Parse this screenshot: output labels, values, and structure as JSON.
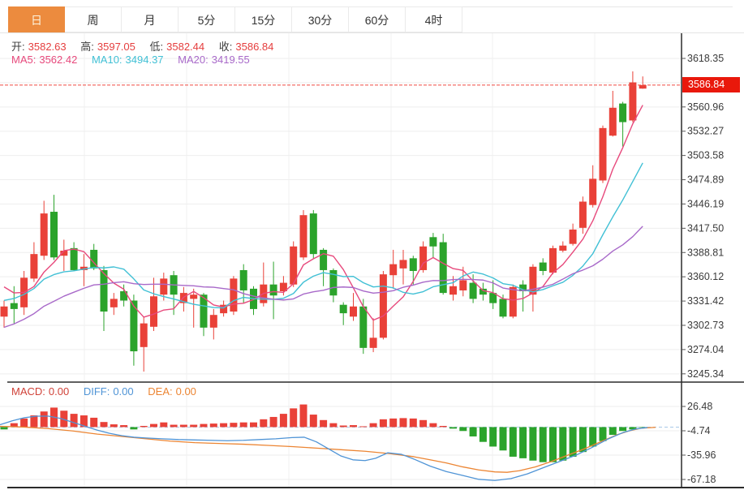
{
  "tabs": [
    {
      "key": "day",
      "label": "日",
      "active": true
    },
    {
      "key": "week",
      "label": "周",
      "active": false
    },
    {
      "key": "month",
      "label": "月",
      "active": false
    },
    {
      "key": "5min",
      "label": "5分",
      "active": false
    },
    {
      "key": "15min",
      "label": "15分",
      "active": false
    },
    {
      "key": "30min",
      "label": "30分",
      "active": false
    },
    {
      "key": "60min",
      "label": "60分",
      "active": false
    },
    {
      "key": "4hour",
      "label": "4时",
      "active": false
    }
  ],
  "ohlc_row": {
    "open_label": "开:",
    "open": "3582.63",
    "high_label": "高:",
    "high": "3597.05",
    "low_label": "低:",
    "low": "3582.44",
    "close_label": "收:",
    "close": "3586.84"
  },
  "ma_row": {
    "ma5_label": "MA5:",
    "ma5": "3562.42",
    "ma10_label": "MA10:",
    "ma10": "3494.37",
    "ma20_label": "MA20:",
    "ma20": "3419.55"
  },
  "macd_row": {
    "macd_label": "MACD:",
    "macd": "0.00",
    "diff_label": "DIFF:",
    "diff": "0.00",
    "dea_label": "DEA:",
    "dea": "0.00"
  },
  "current_price_label": "3586.84",
  "colors": {
    "up": "#e94138",
    "down": "#2ba32b",
    "price_tag_bg": "#e9180b",
    "price_dash": "#ef4a41",
    "ma5": "#e7497c",
    "ma10": "#41c0d5",
    "ma20": "#a869c9",
    "diff": "#4f94d6",
    "dea": "#ec8533",
    "macd_text": "#d04238",
    "grid": "#eeeeee",
    "vgrid": "#f1f1f1",
    "axis": "#2b2b2b",
    "tick_text": "#3b3b3b",
    "zero_dash": "#a8c8e8",
    "tab_active_bg": "#ec8b3e",
    "frame": "#e4e4e4"
  },
  "chart_data": {
    "type": "candlestick",
    "title": "",
    "legend": [
      "MA5",
      "MA10",
      "MA20",
      "MACD",
      "DIFF",
      "DEA"
    ],
    "current_price": 3586.84,
    "price_axis_ticks": [
      3618.35,
      3560.96,
      3532.27,
      3503.58,
      3474.89,
      3446.19,
      3417.5,
      3388.81,
      3360.12,
      3331.42,
      3302.73,
      3274.04,
      3245.34
    ],
    "hidden_gridline_price": 3589.66,
    "price_range": [
      3235.5,
      3648.1
    ],
    "macd_axis_ticks": [
      26.48,
      -4.74,
      -35.96,
      -67.18
    ],
    "macd_range": [
      57.7,
      -77.6
    ],
    "ma_periods": [
      5,
      10,
      20
    ],
    "ma_seed_closes": [
      3240,
      3248,
      3255,
      3260,
      3266,
      3270,
      3274,
      3280,
      3290,
      3301,
      3300,
      3310,
      3318,
      3324,
      3329,
      3358,
      3356,
      3352,
      3350
    ],
    "candles_ohlc": [
      [
        3313,
        3332,
        3300,
        3325
      ],
      [
        3329,
        3349,
        3305,
        3322
      ],
      [
        3324,
        3367,
        3315,
        3359
      ],
      [
        3358,
        3401,
        3354,
        3387
      ],
      [
        3385,
        3450,
        3380,
        3435
      ],
      [
        3437,
        3457,
        3380,
        3383
      ],
      [
        3385,
        3404,
        3367,
        3391
      ],
      [
        3394,
        3401,
        3367,
        3368
      ],
      [
        3368,
        3387,
        3349,
        3372
      ],
      [
        3392,
        3399,
        3368,
        3370
      ],
      [
        3368,
        3373,
        3296,
        3319
      ],
      [
        3324,
        3341,
        3315,
        3334
      ],
      [
        3343,
        3351,
        3325,
        3332
      ],
      [
        3332,
        3339,
        3255,
        3272
      ],
      [
        3277,
        3313,
        3248,
        3305
      ],
      [
        3301,
        3359,
        3296,
        3337
      ],
      [
        3339,
        3365,
        3332,
        3358
      ],
      [
        3362,
        3367,
        3315,
        3339
      ],
      [
        3329,
        3348,
        3319,
        3341
      ],
      [
        3334,
        3346,
        3300,
        3339
      ],
      [
        3339,
        3341,
        3290,
        3300
      ],
      [
        3300,
        3322,
        3286,
        3315
      ],
      [
        3317,
        3332,
        3313,
        3327
      ],
      [
        3319,
        3361,
        3315,
        3358
      ],
      [
        3368,
        3375,
        3329,
        3344
      ],
      [
        3346,
        3349,
        3315,
        3322
      ],
      [
        3329,
        3377,
        3325,
        3351
      ],
      [
        3351,
        3378,
        3310,
        3338
      ],
      [
        3343,
        3361,
        3338,
        3353
      ],
      [
        3351,
        3402,
        3348,
        3396
      ],
      [
        3383,
        3439,
        3380,
        3433
      ],
      [
        3435,
        3439,
        3382,
        3387
      ],
      [
        3392,
        3394,
        3349,
        3368
      ],
      [
        3368,
        3370,
        3330,
        3338
      ],
      [
        3327,
        3330,
        3303,
        3317
      ],
      [
        3313,
        3341,
        3308,
        3325
      ],
      [
        3325,
        3334,
        3269,
        3276
      ],
      [
        3276,
        3311,
        3271,
        3288
      ],
      [
        3288,
        3367,
        3286,
        3363
      ],
      [
        3362,
        3392,
        3346,
        3375
      ],
      [
        3370,
        3392,
        3351,
        3380
      ],
      [
        3382,
        3385,
        3351,
        3367
      ],
      [
        3368,
        3402,
        3365,
        3396
      ],
      [
        3407,
        3412,
        3383,
        3396
      ],
      [
        3401,
        3411,
        3339,
        3341
      ],
      [
        3339,
        3361,
        3332,
        3349
      ],
      [
        3344,
        3372,
        3337,
        3356
      ],
      [
        3353,
        3363,
        3329,
        3334
      ],
      [
        3346,
        3353,
        3332,
        3339
      ],
      [
        3341,
        3356,
        3322,
        3329
      ],
      [
        3334,
        3339,
        3311,
        3313
      ],
      [
        3313,
        3351,
        3311,
        3348
      ],
      [
        3351,
        3356,
        3319,
        3343
      ],
      [
        3339,
        3375,
        3319,
        3372
      ],
      [
        3377,
        3382,
        3362,
        3367
      ],
      [
        3365,
        3397,
        3363,
        3394
      ],
      [
        3391,
        3402,
        3389,
        3397
      ],
      [
        3399,
        3423,
        3397,
        3416
      ],
      [
        3418,
        3455,
        3411,
        3449
      ],
      [
        3445,
        3492,
        3442,
        3476
      ],
      [
        3474,
        3539,
        3471,
        3536
      ],
      [
        3527,
        3580,
        3526,
        3560
      ],
      [
        3565,
        3567,
        3514,
        3543
      ],
      [
        3545,
        3603,
        3543,
        3590
      ],
      [
        3582.63,
        3597.05,
        3582.44,
        3586.84
      ]
    ],
    "macd_histogram": [
      -3,
      5,
      11,
      15,
      20,
      25,
      21,
      17,
      15,
      12,
      6.5,
      3.5,
      2.5,
      -3,
      1.5,
      4,
      6,
      3,
      3,
      3,
      4,
      4.5,
      5,
      5.5,
      6,
      6,
      10,
      13,
      17,
      24,
      29,
      16,
      9,
      5,
      2,
      2.5,
      1,
      5,
      10,
      11,
      11.5,
      11,
      9,
      5,
      1.5,
      -2,
      -5,
      -12,
      -19,
      -25,
      -30,
      -38,
      -40,
      -43,
      -45,
      -45,
      -43,
      -38,
      -32,
      -25,
      -18,
      -10,
      -5,
      -3,
      -0.5
    ],
    "diff_line": [
      [
        0,
        3
      ],
      [
        15,
        8
      ],
      [
        30,
        12
      ],
      [
        45,
        14
      ],
      [
        60,
        14
      ],
      [
        75,
        11
      ],
      [
        90,
        6
      ],
      [
        105,
        1
      ],
      [
        120,
        -4
      ],
      [
        135,
        -8
      ],
      [
        150,
        -11
      ],
      [
        165,
        -13
      ],
      [
        180,
        -14
      ],
      [
        200,
        -15
      ],
      [
        220,
        -16
      ],
      [
        240,
        -16.5
      ],
      [
        260,
        -17
      ],
      [
        280,
        -17.5
      ],
      [
        300,
        -17
      ],
      [
        320,
        -16
      ],
      [
        340,
        -15
      ],
      [
        360,
        -13.5
      ],
      [
        375,
        -13
      ],
      [
        390,
        -19
      ],
      [
        405,
        -28
      ],
      [
        420,
        -37
      ],
      [
        435,
        -42
      ],
      [
        450,
        -43
      ],
      [
        463,
        -40
      ],
      [
        478,
        -33
      ],
      [
        495,
        -35
      ],
      [
        510,
        -41
      ],
      [
        530,
        -50
      ],
      [
        550,
        -57
      ],
      [
        570,
        -62
      ],
      [
        590,
        -67
      ],
      [
        610,
        -68.5
      ],
      [
        630,
        -66
      ],
      [
        650,
        -60
      ],
      [
        670,
        -52
      ],
      [
        690,
        -44
      ],
      [
        710,
        -36
      ],
      [
        730,
        -26
      ],
      [
        750,
        -15
      ],
      [
        768,
        -7
      ],
      [
        783,
        -2.5
      ],
      [
        798,
        -0.5
      ]
    ],
    "dea_line": [
      [
        0,
        1
      ],
      [
        30,
        0
      ],
      [
        60,
        -2
      ],
      [
        90,
        -5
      ],
      [
        120,
        -9
      ],
      [
        150,
        -12
      ],
      [
        180,
        -15
      ],
      [
        210,
        -18
      ],
      [
        240,
        -20
      ],
      [
        270,
        -21
      ],
      [
        300,
        -22
      ],
      [
        330,
        -23.5
      ],
      [
        360,
        -25
      ],
      [
        390,
        -27
      ],
      [
        420,
        -29
      ],
      [
        450,
        -31
      ],
      [
        480,
        -34
      ],
      [
        510,
        -38
      ],
      [
        530,
        -42
      ],
      [
        550,
        -46
      ],
      [
        570,
        -51
      ],
      [
        590,
        -55
      ],
      [
        610,
        -57.5
      ],
      [
        625,
        -58
      ],
      [
        640,
        -56
      ],
      [
        660,
        -51
      ],
      [
        680,
        -44
      ],
      [
        700,
        -36
      ],
      [
        720,
        -28
      ],
      [
        740,
        -19
      ],
      [
        760,
        -10
      ],
      [
        775,
        -5
      ],
      [
        790,
        -1.5
      ],
      [
        808,
        -0.3
      ]
    ],
    "vertical_gridlines_x": [
      104,
      230,
      356,
      482,
      607,
      733
    ]
  }
}
